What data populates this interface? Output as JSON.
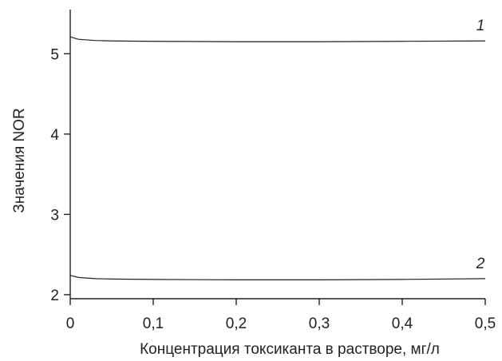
{
  "chart_data": {
    "type": "line",
    "xlabel": "Концентрация токсиканта в растворе, мг/л",
    "ylabel": "Значения NOR",
    "xlim": [
      0,
      0.5
    ],
    "ylim": [
      1.95,
      5.55
    ],
    "xticks": [
      0,
      0.1,
      0.2,
      0.3,
      0.4,
      0.5
    ],
    "xtick_labels": [
      "0",
      "0,1",
      "0,2",
      "0,3",
      "0,4",
      "0,5"
    ],
    "yticks": [
      2,
      3,
      4,
      5
    ],
    "ytick_labels": [
      "2",
      "3",
      "4",
      "5"
    ],
    "grid": false,
    "series": [
      {
        "name": "1",
        "x": [
          0,
          0.01,
          0.03,
          0.05,
          0.1,
          0.2,
          0.3,
          0.4,
          0.5
        ],
        "y": [
          5.21,
          5.18,
          5.165,
          5.16,
          5.155,
          5.15,
          5.15,
          5.155,
          5.16
        ]
      },
      {
        "name": "2",
        "x": [
          0,
          0.01,
          0.03,
          0.05,
          0.1,
          0.2,
          0.3,
          0.4,
          0.5
        ],
        "y": [
          2.24,
          2.215,
          2.2,
          2.195,
          2.19,
          2.185,
          2.185,
          2.19,
          2.2
        ]
      }
    ]
  }
}
